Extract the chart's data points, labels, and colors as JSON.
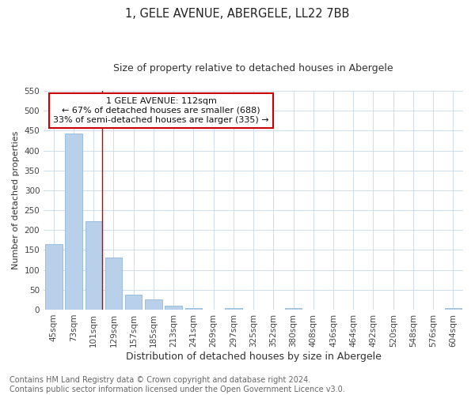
{
  "title": "1, GELE AVENUE, ABERGELE, LL22 7BB",
  "subtitle": "Size of property relative to detached houses in Abergele",
  "xlabel": "Distribution of detached houses by size in Abergele",
  "ylabel": "Number of detached properties",
  "categories": [
    "45sqm",
    "73sqm",
    "101sqm",
    "129sqm",
    "157sqm",
    "185sqm",
    "213sqm",
    "241sqm",
    "269sqm",
    "297sqm",
    "325sqm",
    "352sqm",
    "380sqm",
    "408sqm",
    "436sqm",
    "464sqm",
    "492sqm",
    "520sqm",
    "548sqm",
    "576sqm",
    "604sqm"
  ],
  "values": [
    165,
    443,
    222,
    130,
    37,
    25,
    9,
    3,
    0,
    3,
    0,
    0,
    3,
    0,
    0,
    0,
    0,
    0,
    0,
    0,
    3
  ],
  "bar_color": "#b8d0ea",
  "bar_edge_color": "#90b8d8",
  "ylim": [
    0,
    550
  ],
  "yticks": [
    0,
    50,
    100,
    150,
    200,
    250,
    300,
    350,
    400,
    450,
    500,
    550
  ],
  "property_line_color": "#cc0000",
  "annotation_line1": "1 GELE AVENUE: 112sqm",
  "annotation_line2": "← 67% of detached houses are smaller (688)",
  "annotation_line3": "33% of semi-detached houses are larger (335) →",
  "annotation_box_color": "#cc0000",
  "footnote": "Contains HM Land Registry data © Crown copyright and database right 2024.\nContains public sector information licensed under the Open Government Licence v3.0.",
  "bg_color": "#ffffff",
  "grid_color": "#c8d8e8",
  "title_fontsize": 10.5,
  "subtitle_fontsize": 9,
  "xlabel_fontsize": 9,
  "ylabel_fontsize": 8,
  "tick_fontsize": 7.5,
  "annotation_fontsize": 8,
  "footnote_fontsize": 7
}
